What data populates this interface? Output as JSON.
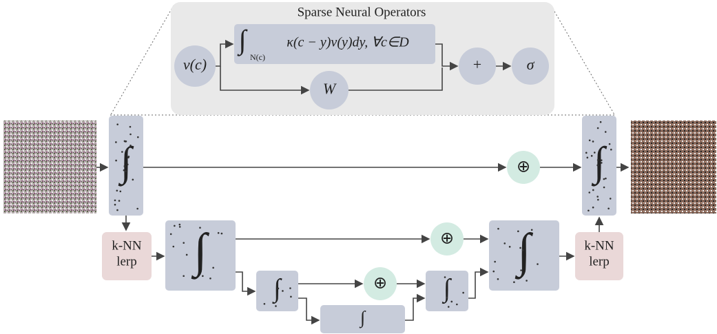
{
  "panel": {
    "title": "Sparse Neural Operators"
  },
  "nodes": {
    "input": "v(c)",
    "operator_integral": "∫",
    "operator_domain": "N(c)",
    "operator_body": "κ(c − y)v(y)dy, ∀c∈D",
    "weight": "W",
    "sum": "+",
    "activation": "σ"
  },
  "symbols": {
    "integral": "∫",
    "skip_add": "⊕"
  },
  "knn": {
    "line1": "k-NN",
    "line2": "lerp"
  }
}
